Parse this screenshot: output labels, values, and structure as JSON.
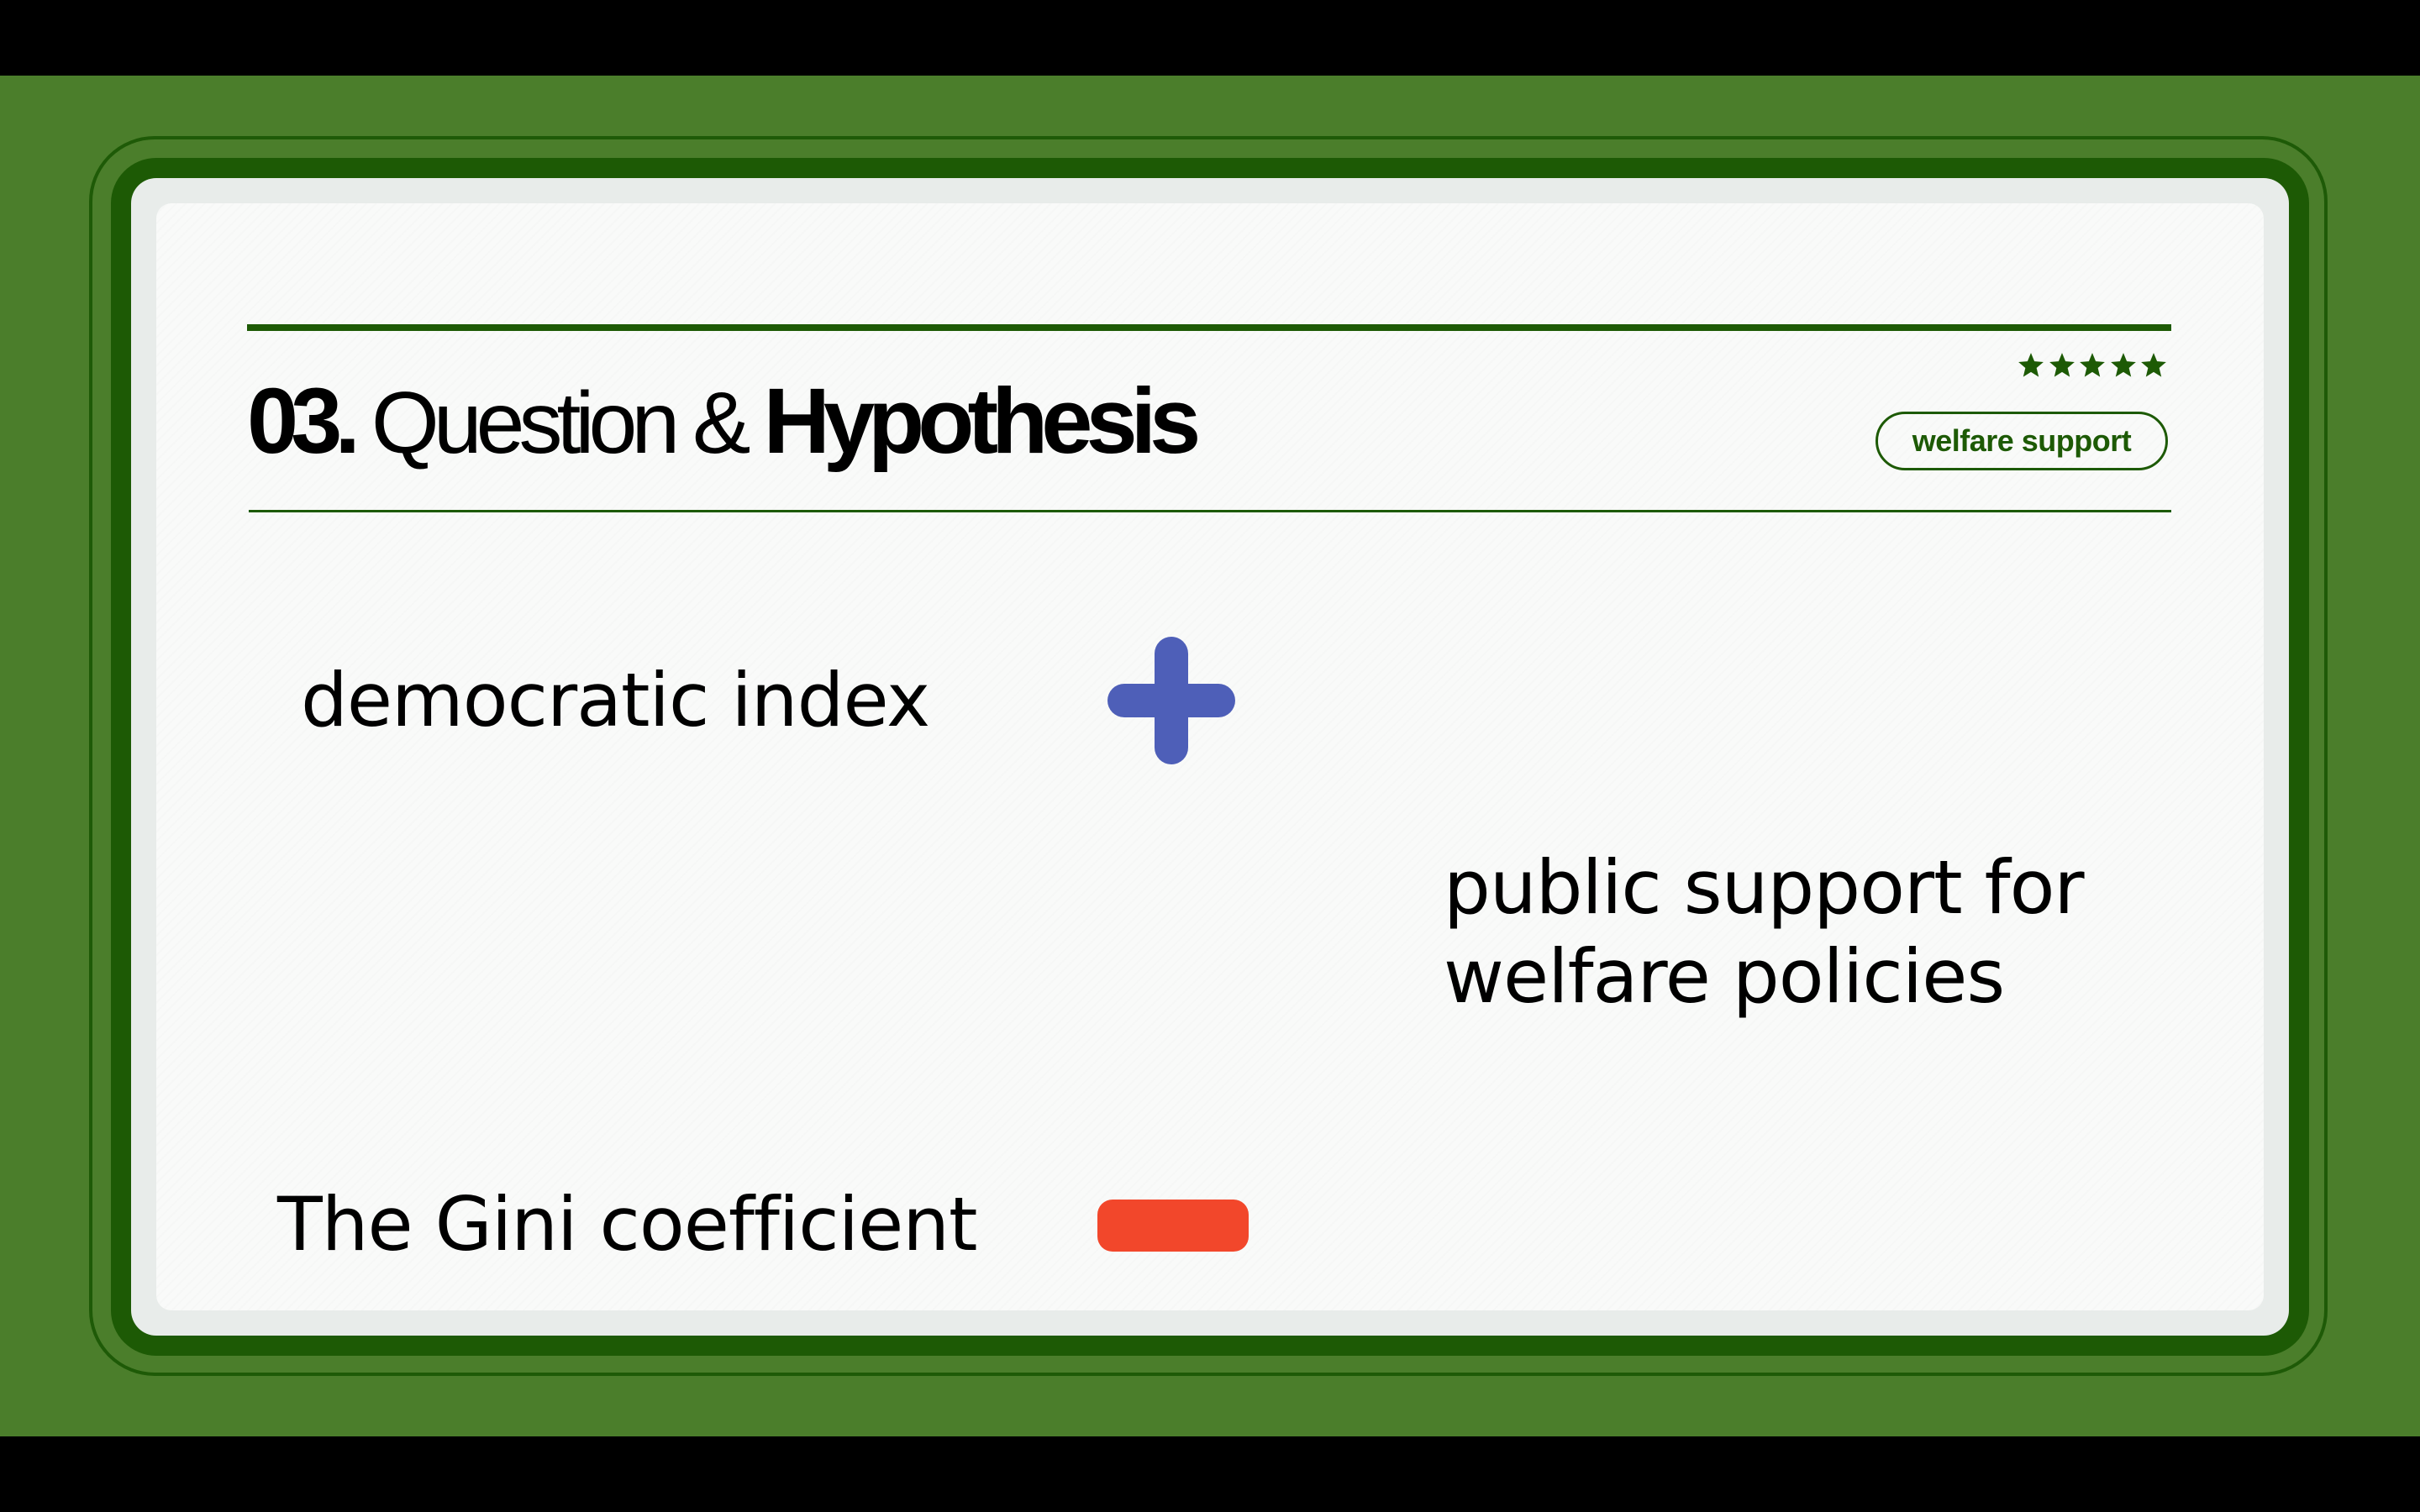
{
  "slide": {
    "number": "03.",
    "title_regular": "Question &",
    "title_bold": "Hypothesis",
    "tag": "welfare support",
    "rating_stars": 5,
    "icons": [
      "star-icon",
      "plus-icon",
      "minus-icon"
    ]
  },
  "hypothesis": {
    "independent_vars": [
      {
        "label": "democratic index",
        "effect": "positive"
      },
      {
        "label": "The Gini coefficient",
        "effect": "negative"
      }
    ],
    "dependent_var": "public support for welfare policies"
  },
  "colors": {
    "brand_green": "#1d5a05",
    "background_green": "#4b7e2b",
    "positive": "#4e5fb8",
    "negative": "#f2472b"
  }
}
